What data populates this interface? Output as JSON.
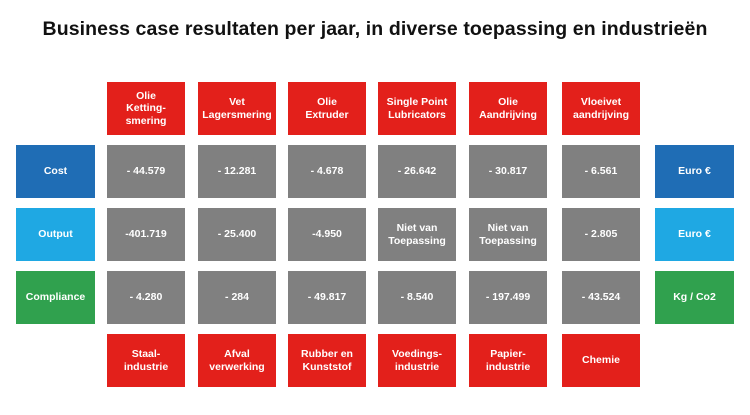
{
  "title": "Business case resultaten per jaar, in diverse toepassing en industrieën",
  "applications": [
    "Olie\nKetting-smering",
    "Vet\nLagersmering",
    "Olie\nExtruder",
    "Single Point\nLubricators",
    "Olie\nAandrijving",
    "Vloeivet\naandrijving"
  ],
  "industries": [
    "Staal-\nindustrie",
    "Afval\nverwerking",
    "Rubber en\nKunststof",
    "Voedings-\nindustrie",
    "Papier-\nindustrie",
    "Chemie"
  ],
  "rows": [
    {
      "label": "Cost",
      "unit": "Euro €",
      "color": "#1f6db5",
      "values": [
        "- 44.579",
        "- 12.281",
        "- 4.678",
        "- 26.642",
        "- 30.817",
        "- 6.561"
      ]
    },
    {
      "label": "Output",
      "unit": "Euro €",
      "color": "#1fa8e3",
      "values": [
        "-401.719",
        "- 25.400",
        "-4.950",
        "Niet van\nToepassing",
        "Niet van\nToepassing",
        "- 2.805"
      ]
    },
    {
      "label": "Compliance",
      "unit": "Kg / Co2",
      "color": "#30a14e",
      "values": [
        "- 4.280",
        "- 284",
        "- 49.817",
        "- 8.540",
        "- 197.499",
        "- 43.524"
      ]
    }
  ],
  "colors": {
    "header": "#e3201b",
    "cell": "#808080"
  }
}
